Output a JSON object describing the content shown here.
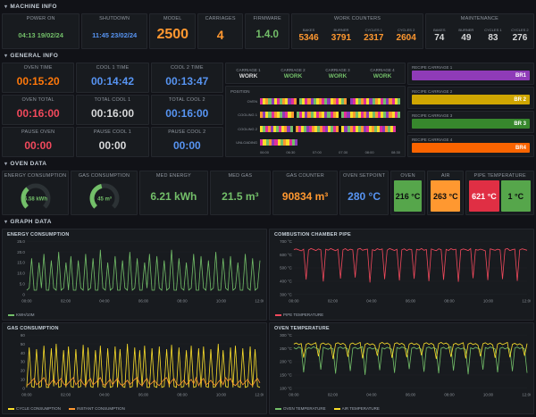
{
  "sections": {
    "machine_info": "MACHINE INFO",
    "general_info": "GENERAL INFO",
    "oven_data": "OVEN DATA",
    "graph_data": "GRAPH DATA"
  },
  "machine_info": {
    "power_on": {
      "title": "POWER ON",
      "value": "04:13 19/02/24",
      "color": "#73bf69"
    },
    "shutdown": {
      "title": "SHUTDOWN",
      "value": "11:45 23/02/24",
      "color": "#5794f2"
    },
    "model": {
      "title": "MODEL",
      "value": "2500",
      "color": "#ff9830"
    },
    "carriages": {
      "title": "CARRIAGES",
      "value": "4",
      "color": "#ff9830"
    },
    "firmware": {
      "title": "FIRMWARE",
      "value": "1.4.0",
      "color": "#73bf69"
    },
    "work_counters": {
      "title": "WORK COUNTERS",
      "items": [
        {
          "label": "BAKES",
          "value": "5346",
          "color": "#ff9830"
        },
        {
          "label": "BURNER",
          "value": "3791",
          "color": "#ff9830"
        },
        {
          "label": "CYCLES 1",
          "value": "2317",
          "color": "#ff9830"
        },
        {
          "label": "CYCLES 2",
          "value": "2604",
          "color": "#ff9830"
        }
      ]
    },
    "maintenance": {
      "title": "MAINTENANCE",
      "items": [
        {
          "label": "BAKES",
          "value": "74",
          "color": "#d8d9da"
        },
        {
          "label": "BURNER",
          "value": "49",
          "color": "#d8d9da"
        },
        {
          "label": "CYCLES 1",
          "value": "83",
          "color": "#d8d9da"
        },
        {
          "label": "CYCLES 2",
          "value": "276",
          "color": "#d8d9da"
        }
      ]
    }
  },
  "general_info": {
    "times": [
      {
        "title": "OVEN TIME",
        "value": "00:15:20",
        "color": "#ff780a"
      },
      {
        "title": "COOL 1 TIME",
        "value": "00:14:42",
        "color": "#5794f2"
      },
      {
        "title": "COOL 2 TIME",
        "value": "00:13:47",
        "color": "#5794f2"
      },
      {
        "title": "OVEN TOTAL",
        "value": "00:16:00",
        "color": "#f2495c"
      },
      {
        "title": "TOTAL COOL 1",
        "value": "00:16:00",
        "color": "#d8d9da"
      },
      {
        "title": "TOTAL COOL 2",
        "value": "00:16:00",
        "color": "#5794f2"
      },
      {
        "title": "PAUSE OVEN",
        "value": "00:00",
        "color": "#f2495c"
      },
      {
        "title": "PAUSE COOL 1",
        "value": "00:00",
        "color": "#d8d9da"
      },
      {
        "title": "PAUSE COOL 2",
        "value": "00:00",
        "color": "#5794f2"
      }
    ],
    "carriage_status": [
      {
        "title": "CARRIAGE 1",
        "value": "WORK",
        "color": "#d8d9da"
      },
      {
        "title": "CARRIAGE 2",
        "value": "WORK",
        "color": "#73bf69"
      },
      {
        "title": "CARRIAGE 3",
        "value": "WORK",
        "color": "#73bf69"
      },
      {
        "title": "CARRIAGE 4",
        "value": "WORK",
        "color": "#73bf69"
      }
    ],
    "position": {
      "label": "POSITION",
      "palette": {
        "m": "#e02f9c",
        "y": "#fade2a",
        "g": "#73bf69",
        "p": "#8f3bb8",
        "o": "#ff9830",
        "c": "#6ed0e0",
        "r": "#f2495c",
        "d": "#111217"
      },
      "rows": [
        {
          "label": "OVEN",
          "pattern": "myogpymgoypmodgymopgyomgpyomygodpmygomypgoymgpomyg",
          "width_pct": 100
        },
        {
          "label": "COOLING 1",
          "pattern": "opygmoygpmyodgmypogymoypgmoydgmpyogymopygomygpoymg",
          "width_pct": 100
        },
        {
          "label": "COOLING 2",
          "pattern": "ygmopygmyopgdomygpmoygompygmodypgomygopmyogympogym",
          "width_pct": 97
        },
        {
          "label": "UNLOADING",
          "pattern": "mygopmygoymgp",
          "width_pct": 27
        }
      ],
      "xticks": [
        "06:00",
        "06:30",
        "07:00",
        "07:30",
        "08:00",
        "08:30"
      ]
    },
    "recipes": [
      {
        "title": "RECIPE CARRIAGE 1",
        "value": "BR1",
        "color": "#8f3bb8"
      },
      {
        "title": "RECIPE CARRIAGE 2",
        "value": "BR 2",
        "color": "#cfa602"
      },
      {
        "title": "RECIPE CARRIAGE 3",
        "value": "BR 3",
        "color": "#37872d"
      },
      {
        "title": "RECIPE CARRIAGE 4",
        "value": "BR4",
        "color": "#fa6400"
      }
    ]
  },
  "oven_data": {
    "energy_gauge": {
      "title": "ENERGY CONSUMPTION",
      "value": "6.58 kWh",
      "pct": 35,
      "color": "#73bf69"
    },
    "gas_gauge": {
      "title": "GAS CONSUMPTION",
      "value": "45 m³",
      "pct": 45,
      "color": "#73bf69"
    },
    "med_energy": {
      "title": "MED ENERGY",
      "value": "6.21 kWh",
      "color": "#73bf69"
    },
    "med_gas": {
      "title": "MED GAS",
      "value": "21.5 m³",
      "color": "#73bf69"
    },
    "gas_counter": {
      "title": "GAS COUNTER",
      "value": "90834 m³",
      "color": "#ff9830"
    },
    "oven_setpoint": {
      "title": "OVEN SETPOINT",
      "value": "280 °C",
      "color": "#5794f2"
    },
    "oven": {
      "title": "OVEN",
      "value": "216 °C",
      "bg": "#56a64b",
      "fg": "#0b0c0e"
    },
    "air": {
      "title": "AIR",
      "value": "263 °C",
      "bg": "#ff9830",
      "fg": "#0b0c0e"
    },
    "pipe": {
      "title": "PIPE TEMPERATURE",
      "values": [
        {
          "value": "621 °C",
          "bg": "#e02f44",
          "fg": "#ffffff"
        },
        {
          "value": "1 °C",
          "bg": "#56a64b",
          "fg": "#0b0c0e"
        }
      ]
    }
  },
  "graphs": [
    {
      "type": "line",
      "title": "ENERGY CONSUMPTION",
      "ymin": 0,
      "ymax": 25,
      "yticks": [
        "25.0",
        "20.0",
        "15.0",
        "10.0",
        "5.0",
        "0"
      ],
      "xticks": [
        "00:00",
        "02:00",
        "04:00",
        "06:00",
        "08:00",
        "10:00",
        "12:00"
      ],
      "series": [
        {
          "name": "KWH/10M",
          "color": "#73bf69",
          "values": [
            2,
            3,
            17,
            2,
            2,
            15,
            3,
            19,
            2,
            2,
            16,
            3,
            2,
            20,
            2,
            3,
            15,
            2,
            18,
            2,
            2,
            16,
            3,
            2,
            19,
            2,
            3,
            17,
            2,
            2,
            21,
            3,
            2,
            15,
            2,
            3,
            18,
            2,
            2,
            16,
            3,
            2,
            20,
            2,
            3,
            17,
            2,
            2,
            15,
            3,
            19,
            2,
            2,
            18,
            3,
            2,
            16,
            2,
            3,
            21,
            2,
            2,
            17,
            3,
            2,
            15,
            2,
            3,
            19,
            2,
            2,
            18,
            3,
            2,
            16,
            2,
            3,
            20,
            2,
            2,
            17,
            3,
            2,
            18,
            2,
            3,
            15,
            2,
            2,
            19,
            3,
            2,
            17,
            2,
            3,
            16
          ]
        }
      ]
    },
    {
      "type": "line",
      "title": "COMBUSTION CHAMBER PIPE",
      "ymin": 300,
      "ymax": 700,
      "yticks": [
        "700 °C",
        "600 °C",
        "500 °C",
        "400 °C",
        "300 °C"
      ],
      "xticks": [
        "00:00",
        "02:00",
        "04:00",
        "06:00",
        "08:00",
        "10:00",
        "12:00"
      ],
      "series": [
        {
          "name": "PIPE TEMPERATURE",
          "color": "#f2495c",
          "values": [
            638,
            642,
            635,
            628,
            640,
            412,
            634,
            645,
            638,
            630,
            642,
            636,
            398,
            640,
            633,
            645,
            637,
            629,
            641,
            420,
            636,
            644,
            631,
            640,
            635,
            427,
            639,
            646,
            632,
            638,
            641,
            390,
            637,
            630,
            644,
            636,
            642,
            415,
            633,
            645,
            638,
            631,
            640,
            405,
            636,
            643,
            630,
            641,
            637,
            418,
            640,
            634,
            645,
            632,
            638,
            400,
            642,
            635,
            629,
            643,
            637,
            410,
            639,
            631,
            644,
            636,
            640,
            395,
            634,
            642,
            637,
            630,
            645,
            422,
            638,
            633,
            641,
            635,
            628,
            408,
            643,
            637,
            632,
            640,
            634,
            416,
            639,
            645,
            630,
            637,
            641,
            402,
            635,
            643,
            638,
            632
          ]
        }
      ]
    },
    {
      "type": "line",
      "title": "GAS CONSUMPTION",
      "ymin": 0,
      "ymax": 60,
      "yticks": [
        "60",
        "50",
        "40",
        "30",
        "20",
        "10",
        "0"
      ],
      "xticks": [
        "00:00",
        "02:00",
        "04:00",
        "06:00",
        "08:00",
        "10:00",
        "12:00"
      ],
      "series": [
        {
          "name": "CYCLE CONSUMPTION",
          "color": "#fade2a",
          "values": [
            1,
            46,
            2,
            1,
            44,
            1,
            2,
            48,
            1,
            1,
            45,
            2,
            50,
            1,
            2,
            43,
            1,
            47,
            2,
            1,
            44,
            1,
            2,
            49,
            1,
            46,
            2,
            1,
            43,
            1,
            48,
            2,
            1,
            45,
            1,
            2,
            47,
            1,
            44,
            2,
            1,
            50,
            1,
            2,
            46,
            1,
            43,
            2,
            48,
            1,
            1,
            45,
            2,
            1,
            47,
            1,
            2,
            44,
            1,
            49,
            2,
            1,
            46,
            1,
            2,
            43,
            1,
            48,
            1,
            2,
            45,
            1,
            47,
            2,
            1,
            44,
            1,
            2,
            50,
            1,
            43,
            2,
            1,
            46,
            1,
            48,
            2,
            1,
            45,
            1,
            2,
            47,
            1,
            44,
            2,
            1
          ]
        },
        {
          "name": "INSTANT CONSUMPTION",
          "color": "#ff9830",
          "values": [
            3,
            5,
            8,
            11,
            4,
            6,
            9,
            12,
            5,
            3,
            7,
            10,
            4,
            8,
            11,
            5,
            3,
            6,
            9,
            12,
            4,
            7,
            10,
            5,
            3,
            8,
            11,
            4,
            6,
            9,
            12,
            5,
            3,
            7,
            10,
            4,
            8,
            11,
            5,
            3,
            6,
            9,
            4,
            7,
            10,
            12,
            5,
            3,
            8,
            11,
            4,
            6,
            9,
            5,
            3,
            7,
            10,
            12,
            4,
            8,
            11,
            5,
            3,
            6,
            9,
            4,
            7,
            10,
            5,
            12,
            3,
            8,
            11,
            4,
            6,
            9,
            5,
            3,
            7,
            10,
            4,
            12,
            8,
            11,
            5,
            3,
            6,
            9,
            4,
            7,
            10,
            5,
            3,
            8,
            11,
            6
          ]
        }
      ]
    },
    {
      "type": "line",
      "title": "OVEN TEMPERATURE",
      "ymin": 100,
      "ymax": 300,
      "yticks": [
        "300 °C",
        "250 °C",
        "200 °C",
        "150 °C",
        "100 °C"
      ],
      "xticks": [
        "00:00",
        "02:00",
        "04:00",
        "06:00",
        "08:00",
        "10:00",
        "12:00"
      ],
      "series": [
        {
          "name": "OVEN TEMPERATURE",
          "color": "#73bf69",
          "values": [
            252,
            248,
            255,
            250,
            160,
            245,
            253,
            249,
            256,
            251,
            247,
            170,
            254,
            250,
            246,
            252,
            248,
            155,
            251,
            255,
            249,
            253,
            247,
            165,
            250,
            254,
            248,
            252,
            256,
            150,
            249,
            253,
            247,
            251,
            245,
            168,
            252,
            248,
            254,
            250,
            246,
            158,
            253,
            249,
            255,
            251,
            247,
            172,
            250,
            254,
            248,
            252,
            246,
            162,
            251,
            255,
            249,
            253,
            247,
            156,
            250,
            254,
            248,
            252,
            256,
            166,
            249,
            253,
            247,
            251,
            245,
            152,
            252,
            248,
            254,
            250,
            246,
            170,
            253,
            249,
            255,
            251,
            247,
            160,
            250,
            254,
            248,
            252,
            246,
            164,
            251,
            255,
            249,
            253,
            247,
            158
          ]
        },
        {
          "name": "AIR TEMPERATURE",
          "color": "#fade2a",
          "values": [
            266,
            270,
            264,
            268,
            215,
            265,
            269,
            263,
            267,
            271,
            220,
            266,
            270,
            264,
            268,
            262,
            210,
            267,
            271,
            265,
            269,
            263,
            218,
            266,
            270,
            264,
            268,
            272,
            212,
            265,
            269,
            263,
            267,
            261,
            222,
            268,
            272,
            266,
            270,
            264,
            214,
            267,
            271,
            265,
            269,
            263,
            216,
            266,
            270,
            264,
            268,
            262,
            224,
            267,
            271,
            265,
            269,
            263,
            210,
            268,
            272,
            266,
            270,
            264,
            218,
            265,
            269,
            263,
            267,
            271,
            212,
            266,
            270,
            264,
            268,
            262,
            220,
            267,
            271,
            265,
            269,
            263,
            214,
            266,
            270,
            264,
            268,
            272,
            216,
            265,
            269,
            263,
            267,
            261,
            222,
            268
          ]
        }
      ]
    }
  ]
}
